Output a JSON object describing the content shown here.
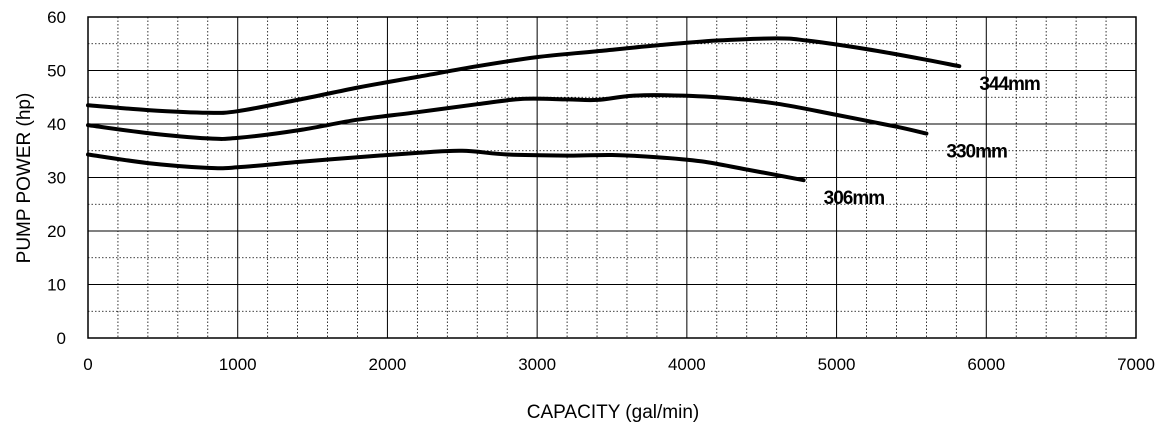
{
  "chart_data": {
    "type": "line",
    "title": "",
    "xlabel": "CAPACITY (gal/min)",
    "ylabel": "PUMP POWER (hp)",
    "xlim": [
      0,
      7000
    ],
    "ylim": [
      0,
      60
    ],
    "x_ticks": [
      "0",
      "1000",
      "2000",
      "3000",
      "4000",
      "5000",
      "6000",
      "7000"
    ],
    "y_ticks": [
      "0",
      "10",
      "20",
      "30",
      "40",
      "50",
      "60"
    ],
    "grid": true,
    "minor_grid": "dotted",
    "legend": "inline labels at line ends",
    "line_color": "#000000",
    "series": [
      {
        "name": "344mm",
        "x": [
          0,
          400,
          800,
          1000,
          1400,
          1800,
          2200,
          2600,
          3000,
          3400,
          3800,
          4200,
          4600,
          4800,
          5200,
          5600,
          5820
        ],
        "y": [
          43.5,
          42.6,
          42.1,
          42.4,
          44.5,
          46.8,
          48.8,
          50.8,
          52.5,
          53.6,
          54.7,
          55.6,
          56.0,
          55.6,
          54.0,
          52.0,
          50.8
        ]
      },
      {
        "name": "330mm",
        "x": [
          0,
          400,
          800,
          1000,
          1400,
          1800,
          2200,
          2600,
          2900,
          3200,
          3400,
          3600,
          3800,
          4200,
          4600,
          5000,
          5400,
          5600
        ],
        "y": [
          39.8,
          38.3,
          37.3,
          37.4,
          38.8,
          40.8,
          42.2,
          43.7,
          44.7,
          44.6,
          44.5,
          45.2,
          45.4,
          45.0,
          43.8,
          41.7,
          39.5,
          38.2
        ]
      },
      {
        "name": "306mm",
        "x": [
          0,
          400,
          800,
          1000,
          1400,
          1800,
          2200,
          2500,
          2800,
          3200,
          3500,
          3800,
          4100,
          4400,
          4780
        ],
        "y": [
          34.3,
          32.7,
          31.8,
          31.9,
          32.9,
          33.8,
          34.6,
          35.0,
          34.3,
          34.1,
          34.2,
          33.8,
          33.0,
          31.5,
          29.5
        ]
      }
    ]
  }
}
